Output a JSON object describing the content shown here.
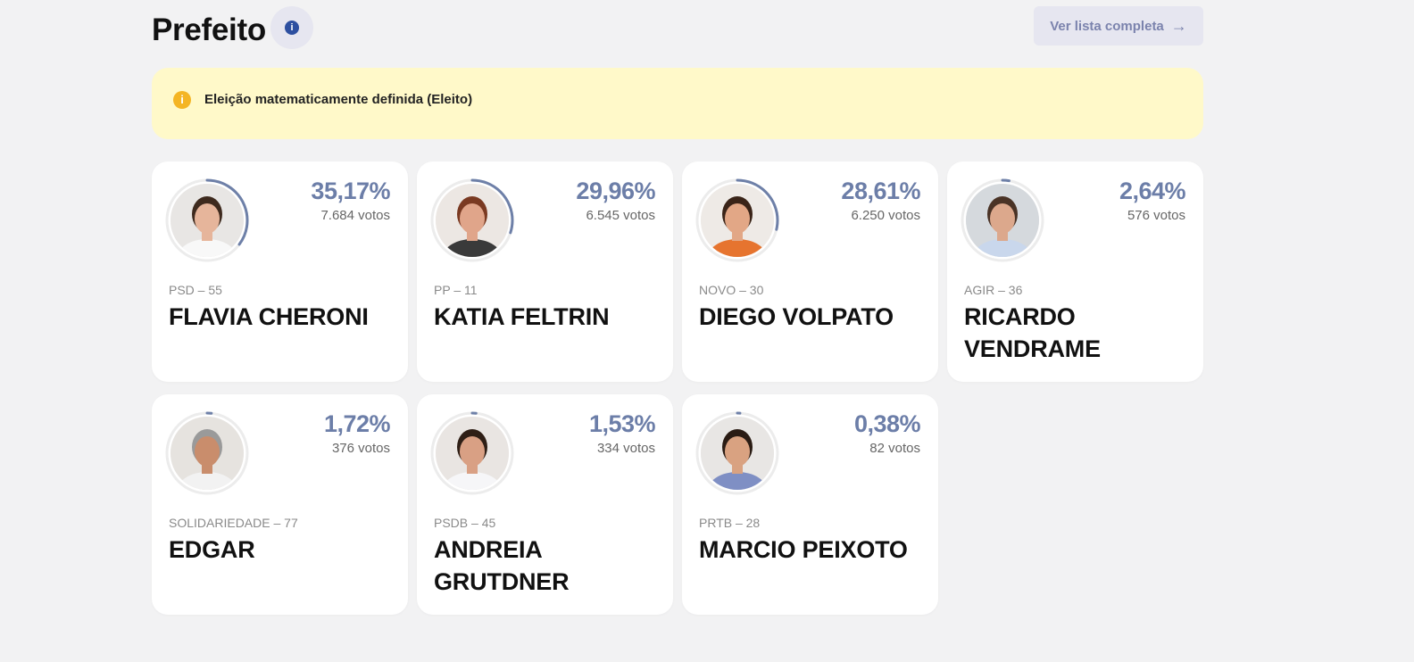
{
  "header": {
    "title": "Prefeito",
    "info_icon": "i",
    "list_button": "Ver lista completa",
    "arrow_icon": "→"
  },
  "alert": {
    "icon": "i",
    "text": "Eleição matematicamente definida (Eleito)"
  },
  "colors": {
    "ring": "#6e80a8",
    "ring_track": "#ececec",
    "alert_bg": "#fff9c9",
    "alert_icon": "#f4b524",
    "percent_text": "#6c7ea8",
    "button_bg": "#e6e6f0"
  },
  "candidates": [
    {
      "percent": "35,17%",
      "percent_value": 35.17,
      "votes": "7.684 votos",
      "party": "PSD – 55",
      "name": "FLAVIA CHERONI",
      "photo": {
        "bg": "#e8e6e4",
        "skin": "#e6b59b",
        "hair": "#3e2a1e",
        "shirt": "#f8f8f8"
      }
    },
    {
      "percent": "29,96%",
      "percent_value": 29.96,
      "votes": "6.545 votos",
      "party": "PP – 11",
      "name": "KATIA FELTRIN",
      "photo": {
        "bg": "#ece7e3",
        "skin": "#e0a58a",
        "hair": "#7a3a22",
        "shirt": "#3a3a3a"
      }
    },
    {
      "percent": "28,61%",
      "percent_value": 28.61,
      "votes": "6.250 votos",
      "party": "NOVO – 30",
      "name": "DIEGO VOLPATO",
      "photo": {
        "bg": "#eeeae6",
        "skin": "#e2a786",
        "hair": "#3a2418",
        "shirt": "#e6742f"
      }
    },
    {
      "percent": "2,64%",
      "percent_value": 2.64,
      "votes": "576 votos",
      "party": "AGIR – 36",
      "name": "RICARDO VENDRAME",
      "photo": {
        "bg": "#d5d9dd",
        "skin": "#dca88c",
        "hair": "#4a3326",
        "shirt": "#c9d7ec"
      }
    },
    {
      "percent": "1,72%",
      "percent_value": 1.72,
      "votes": "376 votos",
      "party": "SOLIDARIEDADE – 77",
      "name": "EDGAR",
      "photo": {
        "bg": "#e6e3df",
        "skin": "#c98d6c",
        "hair": "#9a9a9a",
        "shirt": "#f2f2f2"
      }
    },
    {
      "percent": "1,53%",
      "percent_value": 1.53,
      "votes": "334 votos",
      "party": "PSDB – 45",
      "name": "ANDREIA GRUTDNER",
      "photo": {
        "bg": "#e9e5e2",
        "skin": "#d9a084",
        "hair": "#2f1f16",
        "shirt": "#f6f6f8"
      }
    },
    {
      "percent": "0,38%",
      "percent_value": 0.38,
      "votes": "82 votos",
      "party": "PRTB – 28",
      "name": "MARCIO PEIXOTO",
      "photo": {
        "bg": "#e8e6e4",
        "skin": "#d9a281",
        "hair": "#2a1c14",
        "shirt": "#7f8fc4"
      }
    }
  ]
}
